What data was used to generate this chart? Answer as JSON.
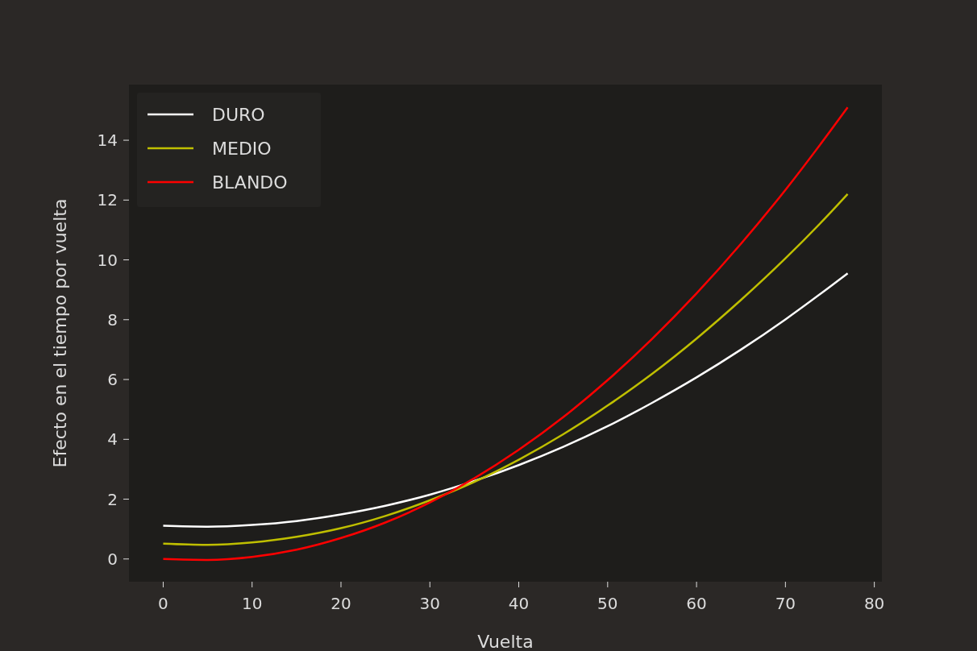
{
  "chart_data": {
    "type": "line",
    "xlabel": "Vuelta",
    "ylabel": "Efecto en el tiempo por vuelta",
    "x": [
      0,
      5,
      10,
      15,
      20,
      25,
      30,
      35,
      40,
      45,
      50,
      55,
      60,
      65,
      70,
      75,
      77
    ],
    "xlim": [
      -3.85,
      80.85
    ],
    "xticks": [
      0,
      10,
      20,
      30,
      40,
      50,
      60,
      70,
      80
    ],
    "ylim": [
      -0.76,
      15.86
    ],
    "yticks": [
      0,
      2,
      4,
      6,
      8,
      10,
      12,
      14
    ],
    "grid": false,
    "legend": "top left",
    "marker": "none",
    "line_style": "solid",
    "series": [
      {
        "name": "DURO",
        "color": "#ffffff",
        "values": [
          1.11,
          1.08,
          1.14,
          1.27,
          1.49,
          1.78,
          2.15,
          2.61,
          3.14,
          3.75,
          4.44,
          5.22,
          6.07,
          7.0,
          8.01,
          9.1,
          9.55
        ]
      },
      {
        "name": "MEDIO",
        "color": "#bfbf00",
        "values": [
          0.51,
          0.47,
          0.55,
          0.74,
          1.03,
          1.44,
          1.96,
          2.58,
          3.32,
          4.17,
          5.13,
          6.19,
          7.37,
          8.66,
          10.05,
          11.56,
          12.2
        ]
      },
      {
        "name": "BLANDO",
        "color": "#ff0000",
        "values": [
          0.0,
          -0.03,
          0.07,
          0.31,
          0.7,
          1.22,
          1.89,
          2.7,
          3.65,
          4.74,
          5.98,
          7.36,
          8.88,
          10.54,
          12.34,
          14.29,
          15.1
        ]
      }
    ]
  }
}
